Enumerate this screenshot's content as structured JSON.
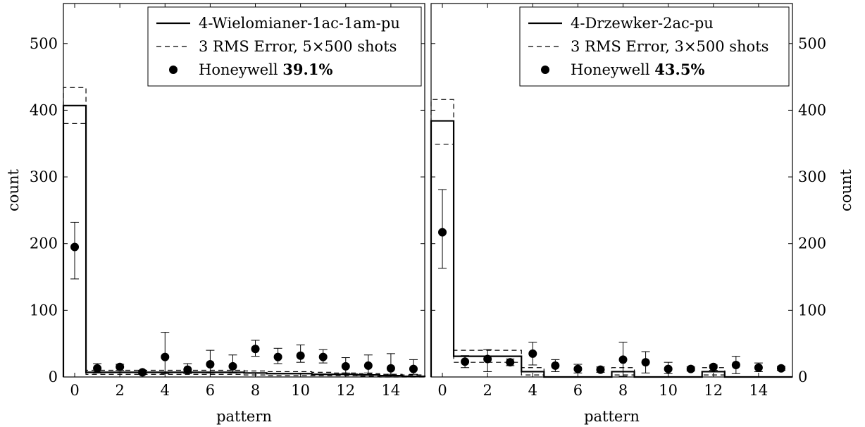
{
  "chart_data": [
    {
      "type": "histogram",
      "panel": "left",
      "xlabel": "pattern",
      "ylabel": "count",
      "ylabel_side": "left",
      "xlim": [
        -0.5,
        15.5
      ],
      "ylim": [
        0,
        560
      ],
      "xticks": [
        "0",
        "2",
        "4",
        "6",
        "8",
        "10",
        "12",
        "14"
      ],
      "yticks": [
        "0",
        "100",
        "200",
        "300",
        "400",
        "500"
      ],
      "legend_position": "top-right",
      "legend": [
        {
          "kind": "solid-line",
          "text": "4-Wielomianer-1ac-1am-pu"
        },
        {
          "kind": "dashed-line",
          "text": "3 RMS Error, 5×500 shots"
        },
        {
          "kind": "dot",
          "text": "Honeywell ",
          "bold": "39.1%"
        }
      ],
      "categories": [
        0,
        1,
        2,
        3,
        4,
        5,
        6,
        7,
        8,
        9,
        10,
        11,
        12,
        13,
        14,
        15
      ],
      "series": [
        {
          "name": "4-Wielomianer-1ac-1am-pu",
          "style": "step-solid",
          "values": [
            407,
            7,
            7,
            7,
            7,
            7,
            7,
            7,
            6,
            5,
            5,
            4,
            4,
            3,
            2,
            1
          ]
        },
        {
          "name": "3 RMS Error, 5×500 shots",
          "style": "step-dashed-band",
          "upper": [
            434,
            10,
            10,
            10,
            10,
            10,
            10,
            10,
            9,
            8,
            8,
            7,
            6,
            5,
            4,
            3
          ],
          "lower": [
            380,
            4,
            4,
            4,
            4,
            4,
            4,
            4,
            3,
            2,
            2,
            2,
            2,
            1,
            0,
            0
          ]
        },
        {
          "name": "Honeywell",
          "style": "points-errorbars",
          "values": [
            195,
            13,
            15,
            7,
            30,
            11,
            19,
            16,
            42,
            30,
            32,
            30,
            16,
            17,
            13,
            12
          ],
          "err_low": [
            147,
            6,
            10,
            5,
            5,
            5,
            6,
            6,
            31,
            20,
            22,
            21,
            6,
            6,
            4,
            4
          ],
          "err_high": [
            232,
            20,
            19,
            9,
            67,
            20,
            40,
            33,
            55,
            43,
            48,
            41,
            29,
            33,
            35,
            26
          ]
        }
      ]
    },
    {
      "type": "histogram",
      "panel": "right",
      "xlabel": "pattern",
      "ylabel": "count",
      "ylabel_side": "right",
      "xlim": [
        -0.5,
        15.5
      ],
      "ylim": [
        0,
        560
      ],
      "xticks": [
        "0",
        "2",
        "4",
        "6",
        "8",
        "10",
        "12",
        "14"
      ],
      "yticks": [
        "0",
        "100",
        "200",
        "300",
        "400",
        "500"
      ],
      "legend_position": "top-right",
      "legend": [
        {
          "kind": "solid-line",
          "text": "4-Drzewker-2ac-pu"
        },
        {
          "kind": "dashed-line",
          "text": "3 RMS Error, 3×500 shots"
        },
        {
          "kind": "dot",
          "text": "Honeywell ",
          "bold": "43.5%"
        }
      ],
      "categories": [
        0,
        1,
        2,
        3,
        4,
        5,
        6,
        7,
        8,
        9,
        10,
        11,
        12,
        13,
        14,
        15
      ],
      "series": [
        {
          "name": "4-Drzewker-2ac-pu",
          "style": "step-solid",
          "values": [
            384,
            31,
            31,
            31,
            8,
            0,
            0,
            0,
            8,
            0,
            0,
            0,
            8,
            0,
            0,
            0
          ]
        },
        {
          "name": "3 RMS Error, 3×500 shots",
          "style": "step-dashed-band",
          "upper": [
            416,
            40,
            40,
            40,
            14,
            0,
            0,
            0,
            14,
            0,
            0,
            0,
            14,
            0,
            0,
            0
          ],
          "lower": [
            349,
            22,
            22,
            22,
            3,
            0,
            0,
            0,
            3,
            0,
            0,
            0,
            3,
            0,
            0,
            0
          ]
        },
        {
          "name": "Honeywell",
          "style": "points-errorbars",
          "values": [
            217,
            23,
            27,
            22,
            35,
            17,
            12,
            11,
            26,
            22,
            12,
            12,
            15,
            18,
            14,
            13
          ],
          "err_low": [
            163,
            14,
            8,
            17,
            18,
            8,
            6,
            7,
            1,
            6,
            5,
            9,
            10,
            5,
            8,
            10
          ],
          "err_high": [
            281,
            32,
            41,
            27,
            52,
            26,
            19,
            15,
            52,
            38,
            22,
            15,
            18,
            31,
            21,
            16
          ]
        }
      ]
    }
  ]
}
